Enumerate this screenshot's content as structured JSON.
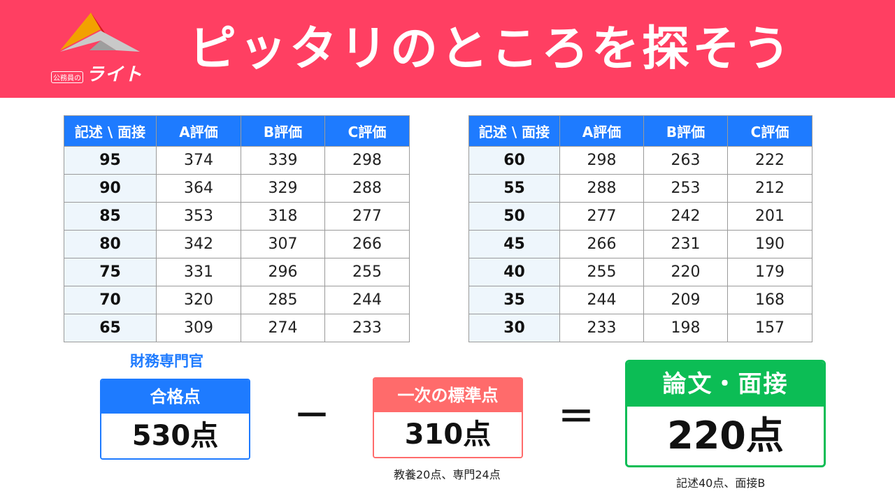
{
  "header": {
    "title": "ピッタリのところを探そう",
    "logo_small": "公務員の",
    "logo_big": "ライト",
    "bg_color": "#ff3f62"
  },
  "table_left": {
    "headers": [
      "記述 \\ 面接",
      "A評価",
      "B評価",
      "C評価"
    ],
    "rows": [
      [
        "95",
        "374",
        "339",
        "298"
      ],
      [
        "90",
        "364",
        "329",
        "288"
      ],
      [
        "85",
        "353",
        "318",
        "277"
      ],
      [
        "80",
        "342",
        "307",
        "266"
      ],
      [
        "75",
        "331",
        "296",
        "255"
      ],
      [
        "70",
        "320",
        "285",
        "244"
      ],
      [
        "65",
        "309",
        "274",
        "233"
      ]
    ]
  },
  "table_right": {
    "headers": [
      "記述 \\ 面接",
      "A評価",
      "B評価",
      "C評価"
    ],
    "rows": [
      [
        "60",
        "298",
        "263",
        "222"
      ],
      [
        "55",
        "288",
        "253",
        "212"
      ],
      [
        "50",
        "277",
        "242",
        "201"
      ],
      [
        "45",
        "266",
        "231",
        "190"
      ],
      [
        "40",
        "255",
        "220",
        "179"
      ],
      [
        "35",
        "244",
        "209",
        "168"
      ],
      [
        "30",
        "233",
        "198",
        "157"
      ]
    ]
  },
  "formula": {
    "bureau_label": "財務専門官",
    "passing": {
      "label": "合格点",
      "value": "530点",
      "color": "#1e7bff"
    },
    "minus": "－",
    "standard": {
      "label": "一次の標準点",
      "value": "310点",
      "note": "教養20点、専門24点",
      "color": "#ff6b6b"
    },
    "equals": "＝",
    "essay": {
      "label": "論文・面接",
      "value": "220点",
      "note": "記述40点、面接B",
      "color": "#0cbd55"
    }
  }
}
